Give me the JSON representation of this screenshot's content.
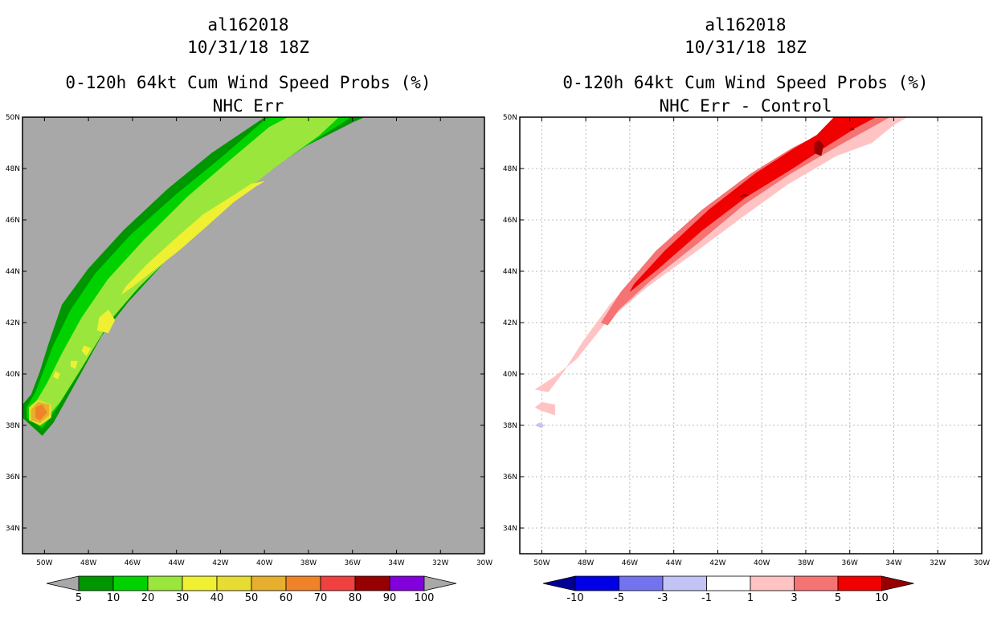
{
  "chart_data": [
    {
      "type": "heatmap",
      "storm_id": "al162018",
      "date": "10/31/18 18Z",
      "title": "0-120h 64kt Cum Wind Speed Probs (%)",
      "subtitle": "NHC Err",
      "xlim": [
        -51,
        -30
      ],
      "ylim": [
        33,
        50
      ],
      "x_ticks": [
        "50W",
        "48W",
        "46W",
        "44W",
        "42W",
        "40W",
        "38W",
        "36W",
        "34W",
        "32W",
        "30W"
      ],
      "y_ticks": [
        "34N",
        "36N",
        "38N",
        "40N",
        "42N",
        "44N",
        "46N",
        "48N",
        "50N"
      ],
      "grid": false,
      "background": "#a8a8a8",
      "colorbar": {
        "labels": [
          "5",
          "10",
          "20",
          "30",
          "40",
          "50",
          "60",
          "70",
          "80",
          "90",
          "100"
        ],
        "colors": [
          "#009600",
          "#00d200",
          "#9be63c",
          "#f0f032",
          "#e6dc32",
          "#e6af2d",
          "#f08228",
          "#f04040",
          "#960000",
          "#8200dc"
        ],
        "low_end_color": "#a8a8a8",
        "high_end_color": "#a8a8a8"
      },
      "contours": [
        {
          "level": "5-10",
          "color": "#009600",
          "points": [
            [
              -50.1,
              37.6
            ],
            [
              -49.6,
              38.1
            ],
            [
              -48.5,
              39.8
            ],
            [
              -47.4,
              41.5
            ],
            [
              -46.2,
              42.8
            ],
            [
              -44.5,
              44.4
            ],
            [
              -42.6,
              45.9
            ],
            [
              -40.4,
              47.6
            ],
            [
              -38.3,
              48.8
            ],
            [
              -36.0,
              49.8
            ],
            [
              -35.2,
              50.1
            ],
            [
              -35.7,
              50.1
            ],
            [
              -37.8,
              50.1
            ],
            [
              -39.8,
              50.1
            ],
            [
              -42.4,
              48.6
            ],
            [
              -44.4,
              47.2
            ],
            [
              -46.4,
              45.6
            ],
            [
              -48.0,
              44.1
            ],
            [
              -49.2,
              42.7
            ],
            [
              -49.8,
              41.2
            ],
            [
              -50.2,
              40.1
            ],
            [
              -50.6,
              39.2
            ],
            [
              -51.0,
              38.8
            ],
            [
              -51.0,
              38.3
            ]
          ]
        },
        {
          "level": "10-20",
          "color": "#00d200",
          "points": [
            [
              -50.1,
              37.9
            ],
            [
              -49.5,
              38.6
            ],
            [
              -48.4,
              40.1
            ],
            [
              -47.3,
              41.8
            ],
            [
              -46.0,
              43.1
            ],
            [
              -44.3,
              44.6
            ],
            [
              -42.2,
              46.2
            ],
            [
              -40.0,
              47.8
            ],
            [
              -37.9,
              49.0
            ],
            [
              -35.9,
              50.1
            ],
            [
              -38.2,
              50.1
            ],
            [
              -39.7,
              50.1
            ],
            [
              -42.0,
              48.4
            ],
            [
              -44.0,
              47.0
            ],
            [
              -46.1,
              45.4
            ],
            [
              -47.7,
              43.9
            ],
            [
              -48.8,
              42.5
            ],
            [
              -49.6,
              41.1
            ],
            [
              -50.0,
              40.2
            ],
            [
              -50.4,
              39.3
            ],
            [
              -50.8,
              38.7
            ],
            [
              -50.8,
              38.3
            ]
          ]
        },
        {
          "level": "20-30",
          "color": "#9be63c",
          "points": [
            [
              -50.0,
              38.2
            ],
            [
              -49.3,
              38.9
            ],
            [
              -48.2,
              40.4
            ],
            [
              -47.0,
              42.1
            ],
            [
              -45.7,
              43.4
            ],
            [
              -44.0,
              44.8
            ],
            [
              -41.8,
              46.5
            ],
            [
              -39.6,
              48.0
            ],
            [
              -37.5,
              49.3
            ],
            [
              -36.5,
              50.1
            ],
            [
              -38.7,
              50.1
            ],
            [
              -39.8,
              49.6
            ],
            [
              -41.6,
              48.3
            ],
            [
              -43.5,
              46.9
            ],
            [
              -45.5,
              45.2
            ],
            [
              -47.1,
              43.7
            ],
            [
              -48.3,
              42.2
            ],
            [
              -49.2,
              40.8
            ],
            [
              -49.9,
              39.6
            ],
            [
              -50.6,
              38.6
            ]
          ]
        },
        {
          "level": "30-40",
          "color": "#f0f032",
          "points": [
            [
              -43.9,
              44.8
            ],
            [
              -42.7,
              45.7
            ],
            [
              -41.4,
              46.7
            ],
            [
              -40.4,
              47.3
            ],
            [
              -40.0,
              47.5
            ],
            [
              -40.6,
              47.4
            ],
            [
              -41.5,
              46.9
            ],
            [
              -42.8,
              46.2
            ],
            [
              -44.0,
              45.3
            ],
            [
              -45.3,
              44.3
            ],
            [
              -46.3,
              43.4
            ],
            [
              -46.5,
              43.1
            ],
            [
              -46.0,
              43.4
            ],
            [
              -45.1,
              44.0
            ]
          ]
        },
        {
          "level": "30-40",
          "color": "#f0f032",
          "points": [
            [
              -47.1,
              41.6
            ],
            [
              -46.8,
              42.1
            ],
            [
              -47.1,
              42.5
            ],
            [
              -47.5,
              42.2
            ],
            [
              -47.6,
              41.7
            ]
          ]
        },
        {
          "level": "30-40",
          "color": "#f0f032",
          "points": [
            [
              -48.1,
              40.7
            ],
            [
              -47.9,
              41.0
            ],
            [
              -48.2,
              41.1
            ],
            [
              -48.3,
              40.9
            ]
          ]
        },
        {
          "level": "30-40",
          "color": "#f0f032",
          "points": [
            [
              -48.6,
              40.2
            ],
            [
              -48.5,
              40.5
            ],
            [
              -48.8,
              40.5
            ],
            [
              -48.8,
              40.3
            ]
          ]
        },
        {
          "level": "30-40",
          "color": "#f0f032",
          "points": [
            [
              -49.4,
              39.8
            ],
            [
              -49.3,
              40.0
            ],
            [
              -49.5,
              40.1
            ],
            [
              -49.6,
              39.9
            ]
          ]
        },
        {
          "level": "40-50",
          "color": "#e6dc32",
          "points": [
            [
              -50.2,
              38.0
            ],
            [
              -49.7,
              38.3
            ],
            [
              -49.7,
              38.8
            ],
            [
              -50.3,
              39.0
            ],
            [
              -50.7,
              38.7
            ],
            [
              -50.7,
              38.2
            ]
          ]
        },
        {
          "level": "50-60",
          "color": "#e6af2d",
          "points": [
            [
              -50.2,
              38.1
            ],
            [
              -49.8,
              38.4
            ],
            [
              -49.8,
              38.8
            ],
            [
              -50.3,
              38.9
            ],
            [
              -50.6,
              38.6
            ],
            [
              -50.6,
              38.2
            ]
          ]
        },
        {
          "level": "60-70",
          "color": "#f08228",
          "points": [
            [
              -50.2,
              38.2
            ],
            [
              -49.9,
              38.5
            ],
            [
              -50.1,
              38.8
            ],
            [
              -50.4,
              38.7
            ],
            [
              -50.4,
              38.3
            ]
          ]
        }
      ]
    },
    {
      "type": "heatmap",
      "storm_id": "al162018",
      "date": "10/31/18 18Z",
      "title": "0-120h 64kt Cum Wind Speed Probs (%)",
      "subtitle": "NHC Err - Control",
      "xlim": [
        -51,
        -30
      ],
      "ylim": [
        33,
        50
      ],
      "x_ticks": [
        "50W",
        "48W",
        "46W",
        "44W",
        "42W",
        "40W",
        "38W",
        "36W",
        "34W",
        "32W",
        "30W"
      ],
      "y_ticks": [
        "34N",
        "36N",
        "38N",
        "40N",
        "42N",
        "44N",
        "46N",
        "48N",
        "50N"
      ],
      "grid": true,
      "background": "#ffffff",
      "colorbar": {
        "labels": [
          "-10",
          "-5",
          "-3",
          "-1",
          "1",
          "3",
          "5",
          "10"
        ],
        "colors": [
          "#0000e6",
          "#7373f0",
          "#c3c3f5",
          "#ffffff",
          "#ffc3c3",
          "#f57373",
          "#f00000"
        ],
        "low_end_color": "#000096",
        "high_end_color": "#960000"
      },
      "contours": [
        {
          "level": "1-3",
          "color": "#ffc3c3",
          "points": [
            [
              -49.7,
              39.3
            ],
            [
              -49.0,
              40.1
            ],
            [
              -48.1,
              41.3
            ],
            [
              -46.9,
              42.7
            ],
            [
              -45.1,
              44.4
            ],
            [
              -43.2,
              45.9
            ],
            [
              -41.0,
              47.5
            ],
            [
              -38.9,
              48.6
            ],
            [
              -36.5,
              49.6
            ],
            [
              -35.2,
              50.1
            ],
            [
              -33.2,
              50.1
            ],
            [
              -34.0,
              49.7
            ],
            [
              -35.0,
              49.0
            ],
            [
              -36.6,
              48.5
            ],
            [
              -38.8,
              47.4
            ],
            [
              -40.9,
              46.1
            ],
            [
              -43.1,
              44.7
            ],
            [
              -45.2,
              43.4
            ],
            [
              -47.1,
              42.0
            ],
            [
              -48.4,
              40.6
            ],
            [
              -49.4,
              39.9
            ],
            [
              -50.3,
              39.4
            ]
          ]
        },
        {
          "level": "1-3",
          "color": "#ffc3c3",
          "points": [
            [
              -50.1,
              38.6
            ],
            [
              -49.4,
              38.4
            ],
            [
              -49.4,
              38.8
            ],
            [
              -50.0,
              38.9
            ],
            [
              -50.3,
              38.7
            ]
          ]
        },
        {
          "level": "3-5",
          "color": "#f57373",
          "points": [
            [
              -47.3,
              42.0
            ],
            [
              -46.4,
              43.2
            ],
            [
              -44.8,
              44.8
            ],
            [
              -42.7,
              46.4
            ],
            [
              -40.5,
              47.8
            ],
            [
              -38.6,
              48.8
            ],
            [
              -36.5,
              49.7
            ],
            [
              -35.3,
              50.1
            ],
            [
              -34.0,
              50.1
            ],
            [
              -34.6,
              49.8
            ],
            [
              -36.5,
              48.9
            ],
            [
              -38.7,
              47.8
            ],
            [
              -40.8,
              46.6
            ],
            [
              -42.9,
              45.1
            ],
            [
              -45.1,
              43.6
            ],
            [
              -46.5,
              42.5
            ],
            [
              -47.0,
              41.9
            ]
          ]
        },
        {
          "level": "5-10",
          "color": "#f00000",
          "points": [
            [
              -45.8,
              43.5
            ],
            [
              -44.4,
              44.8
            ],
            [
              -42.4,
              46.4
            ],
            [
              -40.3,
              47.8
            ],
            [
              -38.5,
              48.8
            ],
            [
              -37.5,
              49.3
            ],
            [
              -36.6,
              50.1
            ],
            [
              -34.6,
              50.1
            ],
            [
              -35.7,
              49.6
            ],
            [
              -37.0,
              48.9
            ],
            [
              -38.6,
              48.0
            ],
            [
              -40.7,
              46.9
            ],
            [
              -42.7,
              45.6
            ],
            [
              -44.7,
              44.1
            ],
            [
              -46.0,
              43.2
            ]
          ]
        },
        {
          "level": ">10",
          "color": "#960000",
          "points": [
            [
              -37.6,
              48.6
            ],
            [
              -37.6,
              49.0
            ],
            [
              -37.4,
              49.1
            ],
            [
              -37.2,
              48.9
            ],
            [
              -37.3,
              48.5
            ]
          ]
        },
        {
          "level": ">10",
          "color": "#960000",
          "points": [
            [
              -41.0,
              46.9
            ],
            [
              -40.8,
              47.0
            ],
            [
              -40.6,
              46.95
            ]
          ]
        },
        {
          "level": ">10",
          "color": "#960000",
          "points": [
            [
              -36.0,
              49.5
            ],
            [
              -35.9,
              49.6
            ],
            [
              -35.8,
              49.5
            ]
          ]
        },
        {
          "level": "-1 to -3",
          "color": "#c3c3f5",
          "points": [
            [
              -50.3,
              38.0
            ],
            [
              -50.0,
              37.9
            ],
            [
              -49.9,
              38.0
            ],
            [
              -50.1,
              38.1
            ]
          ]
        }
      ]
    }
  ]
}
